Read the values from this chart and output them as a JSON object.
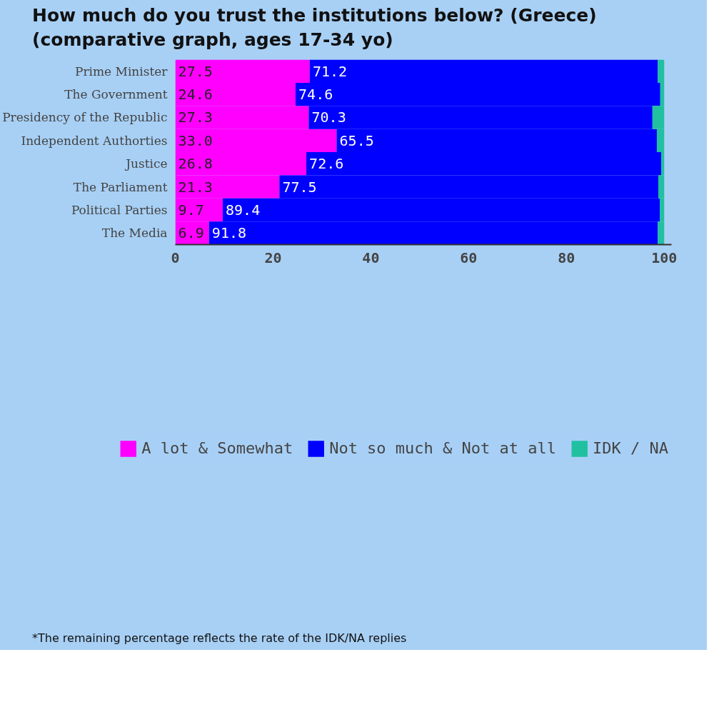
{
  "chart_data": {
    "type": "bar",
    "orientation": "horizontal",
    "stacked": true,
    "title": "How much do you trust the institutions below? (Greece)",
    "subtitle": "(comparative graph, ages 17-34 yo)",
    "categories": [
      "Prime Minister",
      "The Government",
      "Presidency of the Republic",
      "Independent Authorties",
      "Justice",
      "The Parliament",
      "Political Parties",
      "The Media"
    ],
    "series": [
      {
        "name": "A lot & Somewhat",
        "color": "#ff00ff",
        "values": [
          27.5,
          24.6,
          27.3,
          33.0,
          26.8,
          21.3,
          9.7,
          6.9
        ],
        "value_labels": [
          "27.5",
          "24.6",
          "27.3",
          "33.0",
          "26.8",
          "21.3",
          "9.7",
          "6.9"
        ]
      },
      {
        "name": "Not so much & Not at all",
        "color": "#0000ff",
        "values": [
          71.2,
          74.6,
          70.3,
          65.5,
          72.6,
          77.5,
          89.4,
          91.8
        ],
        "value_labels": [
          "71.2",
          "74.6",
          "70.3",
          "65.5",
          "72.6",
          "77.5",
          "89.4",
          "91.8"
        ]
      },
      {
        "name": "IDK / NA",
        "color": "#20c0a0",
        "values": [
          1.3,
          0.8,
          2.4,
          1.5,
          0.6,
          1.2,
          0.9,
          1.3
        ]
      }
    ],
    "xlim": [
      0,
      101.5
    ],
    "xticks": [
      0,
      20,
      40,
      60,
      80,
      100
    ],
    "grid": false,
    "legend": "bottom",
    "annotations": [
      "*The remaining percentage reflects the rate of the IDK/NA replies"
    ]
  }
}
